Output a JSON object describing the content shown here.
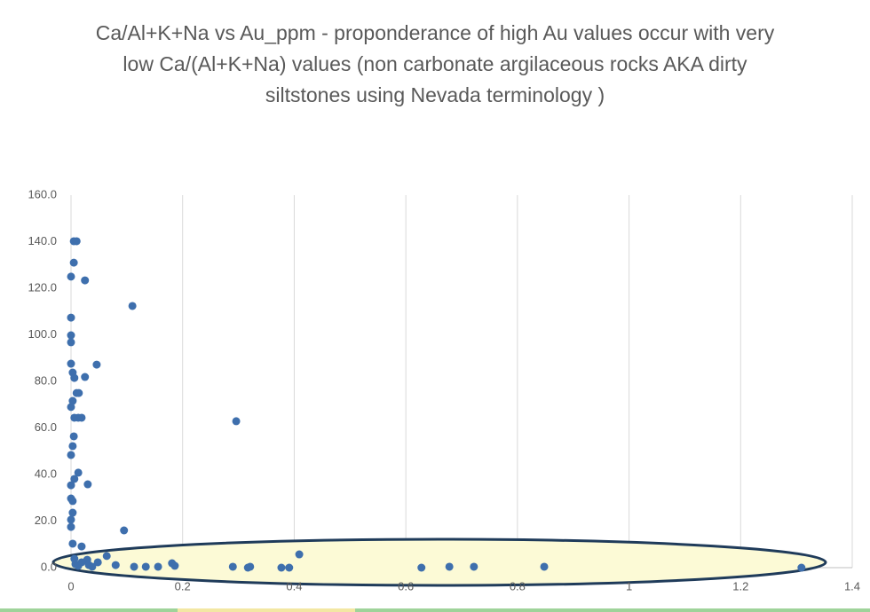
{
  "chart_data": {
    "type": "scatter",
    "title": "Ca/Al+K+Na vs Au_ppm - proponderance of high Au values occur with very low Ca/(Al+K+Na) values (non carbonate argilaceous rocks AKA dirty siltstones using Nevada terminology )",
    "x": [
      0.005,
      0.01,
      0.005,
      0,
      0.025,
      0.11,
      0,
      0,
      0,
      0,
      0.046,
      0.003,
      0.006,
      0.025,
      0.01,
      0.014,
      0.003,
      0,
      0.006,
      0.013,
      0.019,
      0.296,
      0.005,
      0.003,
      0,
      0.013,
      0.006,
      0,
      0.03,
      0,
      0.003,
      0.003,
      0,
      0,
      0.095,
      0.003,
      0.019,
      0.409,
      0.064,
      0.006,
      0.029,
      0.048,
      0.08,
      0.113,
      0.134,
      0.156,
      0.181,
      0.186,
      0.29,
      0.317,
      0.321,
      0.377,
      0.391,
      0.628,
      0.678,
      0.722,
      0.848,
      1.309,
      0.008,
      0.013,
      0.019,
      0.032,
      0.038
    ],
    "values": [
      140.2,
      140.2,
      131,
      125,
      123.4,
      112.4,
      107.4,
      99.8,
      96.8,
      87.6,
      87.2,
      83.8,
      81.5,
      81.9,
      75,
      75,
      71.6,
      69,
      64.4,
      64.4,
      64.4,
      62.9,
      56.4,
      52.2,
      48.4,
      40.8,
      38.1,
      35.4,
      35.8,
      29.7,
      28.6,
      23.6,
      20.6,
      17.5,
      16,
      10.3,
      9.1,
      5.7,
      5,
      3.8,
      3.4,
      2.3,
      1.1,
      0.4,
      0.4,
      0.4,
      1.9,
      0.8,
      0.4,
      0,
      0.4,
      0,
      0,
      0,
      0.4,
      0.4,
      0.4,
      0,
      1.5,
      0.8,
      2.3,
      1.1,
      0.4
    ],
    "color": "#3e6fad",
    "xlim": [
      0,
      1.4
    ],
    "xticks": [
      0,
      0.2,
      0.4,
      0.6,
      0.8,
      1,
      1.2,
      1.4
    ],
    "ylim": [
      0,
      160
    ],
    "yticks": [
      {
        "value": 0,
        "label": "0.0"
      },
      {
        "value": 20,
        "label": "20.0"
      },
      {
        "value": 40,
        "label": "40.0"
      },
      {
        "value": 60,
        "label": "60.0"
      },
      {
        "value": 80,
        "label": "80.0"
      },
      {
        "value": 100,
        "label": "100.0"
      },
      {
        "value": 120,
        "label": "120.0"
      },
      {
        "value": 140,
        "label": "140.0"
      },
      {
        "value": 160,
        "label": "160.0"
      }
    ],
    "grid": true
  }
}
